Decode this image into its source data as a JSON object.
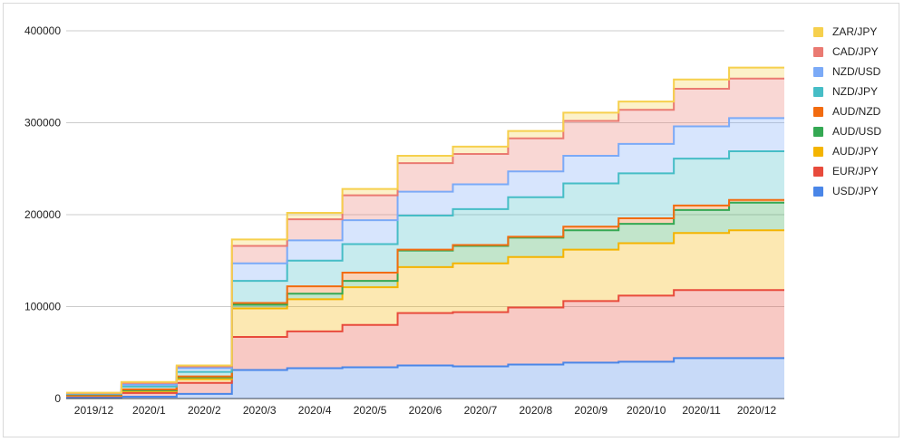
{
  "chart_data": {
    "type": "area",
    "step": true,
    "stacked": true,
    "categories": [
      "2019/12",
      "2020/1",
      "2020/2",
      "2020/3",
      "2020/4",
      "2020/5",
      "2020/6",
      "2020/7",
      "2020/8",
      "2020/9",
      "2020/10",
      "2020/11",
      "2020/12"
    ],
    "yticks": [
      0,
      100000,
      200000,
      300000,
      400000
    ],
    "ylim": [
      0,
      400000
    ],
    "grid": true,
    "legend_position": "right",
    "series": [
      {
        "name": "USD/JPY",
        "color": "#4a86e8",
        "values": [
          1500,
          2000,
          5000,
          31000,
          33000,
          34000,
          36000,
          35000,
          37000,
          39000,
          40000,
          44000,
          44000
        ]
      },
      {
        "name": "EUR/JPY",
        "color": "#e84b3c",
        "values": [
          1200,
          4000,
          12000,
          36000,
          40000,
          46000,
          57000,
          59000,
          62000,
          67000,
          72000,
          74000,
          74000
        ]
      },
      {
        "name": "AUD/JPY",
        "color": "#f4b400",
        "values": [
          800,
          2000,
          4000,
          31000,
          35000,
          41000,
          50000,
          53000,
          55000,
          56000,
          57000,
          62000,
          65000
        ]
      },
      {
        "name": "AUD/USD",
        "color": "#34a853",
        "values": [
          500,
          1000,
          2000,
          4000,
          6000,
          7000,
          18000,
          19000,
          21000,
          21000,
          21000,
          25000,
          30000
        ]
      },
      {
        "name": "AUD/NZD",
        "color": "#f26b0f",
        "values": [
          300,
          1000,
          1000,
          2000,
          8000,
          9000,
          1000,
          1000,
          1000,
          4000,
          6000,
          5000,
          3000
        ]
      },
      {
        "name": "NZD/JPY",
        "color": "#46bdc6",
        "values": [
          700,
          3000,
          5000,
          24000,
          28000,
          31000,
          37000,
          39000,
          43000,
          47000,
          49000,
          51000,
          53000
        ]
      },
      {
        "name": "NZD/USD",
        "color": "#7baaf7",
        "values": [
          500,
          2000,
          4000,
          19000,
          22000,
          26000,
          26000,
          27000,
          28000,
          30000,
          32000,
          35000,
          36000
        ]
      },
      {
        "name": "CAD/JPY",
        "color": "#ea7a72",
        "values": [
          500,
          2000,
          2000,
          19000,
          23000,
          27000,
          31000,
          33000,
          36000,
          38000,
          37000,
          41000,
          43000
        ]
      },
      {
        "name": "ZAR/JPY",
        "color": "#f6d04d",
        "values": [
          300,
          1000,
          1000,
          7000,
          7000,
          7000,
          8000,
          8000,
          8000,
          9000,
          9000,
          10000,
          12000
        ]
      }
    ]
  }
}
